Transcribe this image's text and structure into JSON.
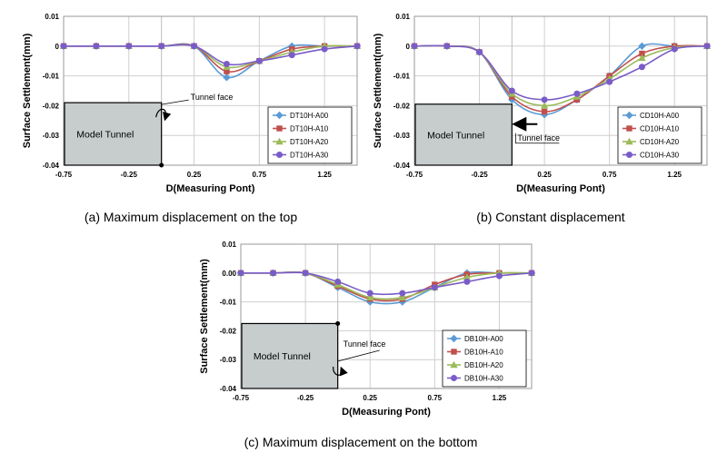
{
  "colors": {
    "series": [
      "#5b9bd5",
      "#c0504d",
      "#9bbb59",
      "#7a5cc8"
    ],
    "tunnel_fill": "#c6cdcc",
    "grid": "#cfcfcf"
  },
  "chart_data": [
    {
      "type": "line",
      "caption": "(a) Maximum displacement on the top",
      "xlabel": "D(Measuring Pont)",
      "ylabel": "Surface Settlement(mm)",
      "xlim": [
        -0.75,
        1.5
      ],
      "ylim": [
        -0.04,
        0.01
      ],
      "xticks": [
        "-0.75",
        "-0.25",
        "0.25",
        "0.75",
        "1.25"
      ],
      "yticks": [
        "0.01",
        "0",
        "-0.01",
        "-0.02",
        "-0.03",
        "-0.04"
      ],
      "x": [
        -0.75,
        -0.5,
        -0.25,
        0,
        0.25,
        0.5,
        0.75,
        1,
        1.25,
        1.5
      ],
      "series": [
        {
          "name": "DT10H-A00",
          "marker": "diamond",
          "values": [
            0,
            0,
            0,
            0,
            0,
            -0.0105,
            -0.005,
            0,
            0,
            0
          ]
        },
        {
          "name": "DT10H-A10",
          "marker": "square",
          "values": [
            0,
            0,
            0,
            0,
            0,
            -0.0085,
            -0.005,
            -0.001,
            0,
            0
          ]
        },
        {
          "name": "DT10H-A20",
          "marker": "triangle",
          "values": [
            0,
            0,
            0,
            0,
            0,
            -0.007,
            -0.005,
            -0.002,
            0,
            0
          ]
        },
        {
          "name": "DT10H-A30",
          "marker": "circle",
          "values": [
            0,
            0,
            0,
            0,
            0,
            -0.006,
            -0.005,
            -0.003,
            -0.001,
            0
          ]
        }
      ],
      "model_label": "Model Tunnel",
      "face_label": "Tunnel face",
      "tunnel_top": -0.019,
      "face_arrow": "curved-down"
    },
    {
      "type": "line",
      "caption": "(b) Constant displacement",
      "xlabel": "D(Measuring Pont)",
      "ylabel": "Surface Settlement(mm)",
      "xlim": [
        -0.75,
        1.5
      ],
      "ylim": [
        -0.04,
        0.01
      ],
      "xticks": [
        "-0.75",
        "-0.25",
        "0.25",
        "0.75",
        "1.25"
      ],
      "yticks": [
        "0.01",
        "0",
        "-0.01",
        "-0.02",
        "-0.03",
        "-0.04"
      ],
      "x": [
        -0.75,
        -0.5,
        -0.25,
        0,
        0.25,
        0.5,
        0.75,
        1,
        1.25,
        1.5
      ],
      "series": [
        {
          "name": "CD10H-A00",
          "marker": "diamond",
          "values": [
            0,
            0,
            -0.002,
            -0.018,
            -0.023,
            -0.018,
            -0.01,
            0,
            0,
            0
          ]
        },
        {
          "name": "CD10H-A10",
          "marker": "square",
          "values": [
            0,
            0,
            -0.002,
            -0.017,
            -0.022,
            -0.018,
            -0.01,
            -0.0025,
            0,
            0
          ]
        },
        {
          "name": "CD10H-A20",
          "marker": "triangle",
          "values": [
            0,
            0,
            -0.002,
            -0.016,
            -0.02,
            -0.017,
            -0.011,
            -0.004,
            -0.0005,
            0
          ]
        },
        {
          "name": "CD10H-A30",
          "marker": "circle",
          "values": [
            0,
            0,
            -0.002,
            -0.015,
            -0.018,
            -0.016,
            -0.012,
            -0.007,
            -0.001,
            0
          ]
        }
      ],
      "model_label": "Model Tunnel",
      "face_label": "Tunnel face",
      "tunnel_top": -0.0195,
      "face_arrow": "straight-left"
    },
    {
      "type": "line",
      "caption": "(c) Maximum displacement on the bottom",
      "xlabel": "D(Measuring Pont)",
      "ylabel": "Surface Settlement(mm)",
      "xlim": [
        -0.75,
        1.5
      ],
      "ylim": [
        -0.04,
        0.01
      ],
      "xticks": [
        "-0.75",
        "-0.25",
        "0.25",
        "0.75",
        "1.25"
      ],
      "yticks": [
        "0.01",
        "0.00",
        "-0.01",
        "-0.02",
        "-0.03",
        "-0.04"
      ],
      "x": [
        -0.75,
        -0.5,
        -0.25,
        0,
        0.25,
        0.5,
        0.75,
        1,
        1.25,
        1.5
      ],
      "series": [
        {
          "name": "DB10H-A00",
          "marker": "diamond",
          "values": [
            0,
            0,
            0,
            -0.005,
            -0.01,
            -0.01,
            -0.005,
            0,
            0,
            0
          ]
        },
        {
          "name": "DB10H-A10",
          "marker": "square",
          "values": [
            0,
            0,
            0,
            -0.0045,
            -0.009,
            -0.009,
            -0.004,
            -0.0005,
            0,
            0
          ]
        },
        {
          "name": "DB10H-A20",
          "marker": "triangle",
          "values": [
            0,
            0,
            0,
            -0.004,
            -0.0085,
            -0.0085,
            -0.005,
            -0.0015,
            0,
            0
          ]
        },
        {
          "name": "DB10H-A30",
          "marker": "circle",
          "values": [
            0,
            0,
            0,
            -0.003,
            -0.007,
            -0.007,
            -0.005,
            -0.003,
            -0.001,
            0
          ]
        }
      ],
      "model_label": "Model Tunnel",
      "face_label": "Tunnel face",
      "tunnel_top": -0.0175,
      "face_arrow": "curved-bottom"
    }
  ]
}
